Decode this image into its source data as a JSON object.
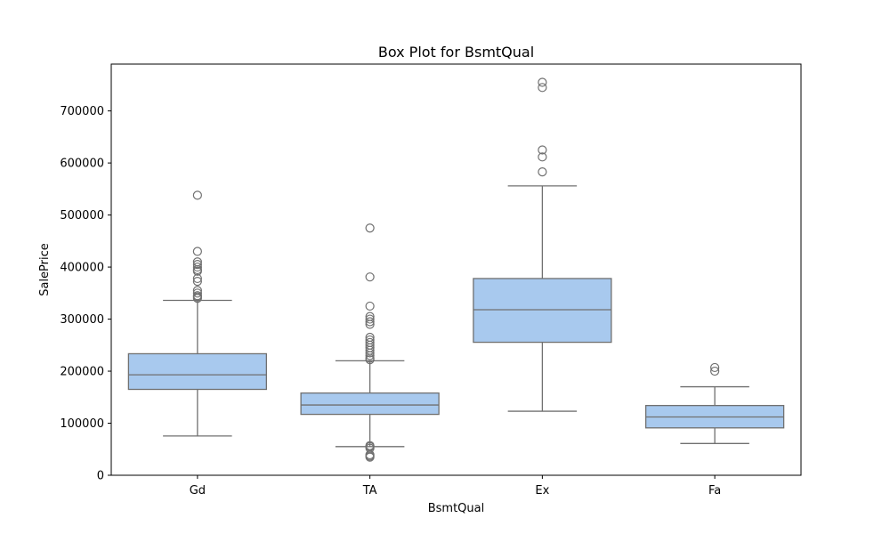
{
  "chart_data": {
    "type": "box",
    "title": "Box Plot for BsmtQual",
    "xlabel": "BsmtQual",
    "ylabel": "SalePrice",
    "ylim": [
      0,
      790000
    ],
    "yticks": [
      0,
      100000,
      200000,
      300000,
      400000,
      500000,
      600000,
      700000
    ],
    "ytick_labels": [
      "0",
      "100000",
      "200000",
      "300000",
      "400000",
      "500000",
      "600000",
      "700000"
    ],
    "grid": false,
    "box_color": "#a8c9ee",
    "line_color": "#707070",
    "categories": [
      "Gd",
      "TA",
      "Ex",
      "Fa"
    ],
    "boxes": [
      {
        "category": "Gd",
        "whisker_low": 75500,
        "q1": 165000,
        "median": 193000,
        "q3": 233500,
        "whisker_high": 336000,
        "outliers": [
          340000,
          342500,
          345000,
          350000,
          355000,
          372500,
          378000,
          392000,
          395000,
          400000,
          405000,
          410000,
          430000,
          538000
        ]
      },
      {
        "category": "TA",
        "whisker_low": 55000,
        "q1": 117000,
        "median": 135000,
        "q3": 158000,
        "whisker_high": 220000,
        "outliers": [
          34900,
          37000,
          39300,
          52000,
          55000,
          57000,
          222000,
          225000,
          230000,
          235000,
          240000,
          245000,
          250000,
          255000,
          260000,
          265000,
          290000,
          295000,
          300000,
          305000,
          325000,
          381000,
          475000
        ]
      },
      {
        "category": "Ex",
        "whisker_low": 123000,
        "q1": 255500,
        "median": 318000,
        "q3": 378000,
        "whisker_high": 556000,
        "outliers": [
          582900,
          611600,
          625000,
          745000,
          755000
        ]
      },
      {
        "category": "Fa",
        "whisker_low": 61000,
        "q1": 91000,
        "median": 112000,
        "q3": 134000,
        "whisker_high": 170000,
        "outliers": [
          200000,
          207000
        ]
      }
    ]
  }
}
